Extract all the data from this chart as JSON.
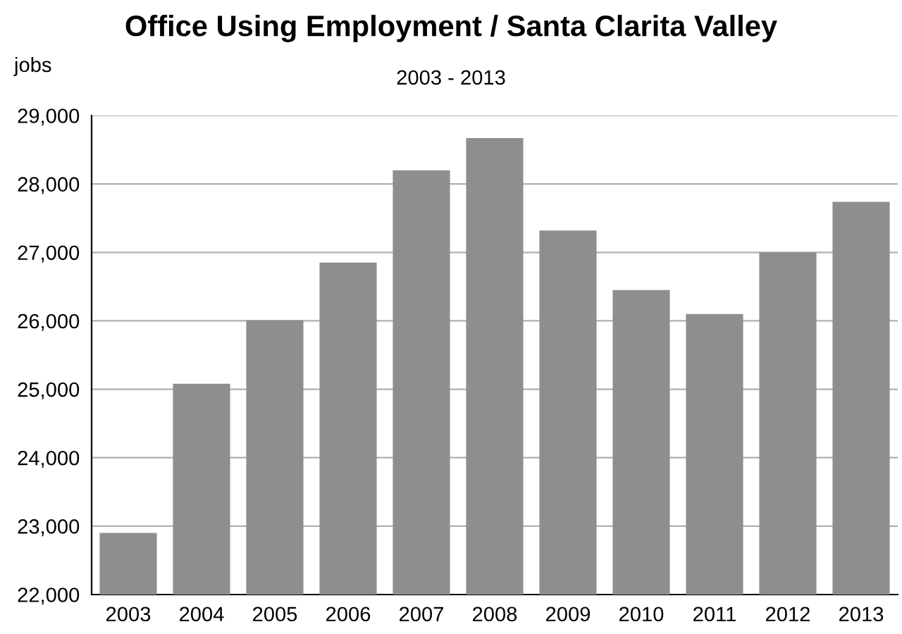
{
  "chart_data": {
    "type": "bar",
    "title": "Office Using Employment / Santa Clarita Valley",
    "subtitle": "2003 - 2013",
    "ylabel": "jobs",
    "categories": [
      "2003",
      "2004",
      "2005",
      "2006",
      "2007",
      "2008",
      "2009",
      "2010",
      "2011",
      "2012",
      "2013"
    ],
    "values": [
      22900,
      25080,
      26010,
      26850,
      28200,
      28670,
      27320,
      26450,
      26100,
      27000,
      27740
    ],
    "color": "#8e8e8e",
    "ylim": [
      22000,
      29000
    ],
    "yticks": [
      {
        "value": 22000,
        "label": "22,000"
      },
      {
        "value": 23000,
        "label": "23,000"
      },
      {
        "value": 24000,
        "label": "24,000"
      },
      {
        "value": 25000,
        "label": "25,000"
      },
      {
        "value": 26000,
        "label": "26,000"
      },
      {
        "value": 27000,
        "label": "27,000"
      },
      {
        "value": 28000,
        "label": "28,000"
      },
      {
        "value": 29000,
        "label": "29,000"
      }
    ],
    "grid": "y"
  }
}
